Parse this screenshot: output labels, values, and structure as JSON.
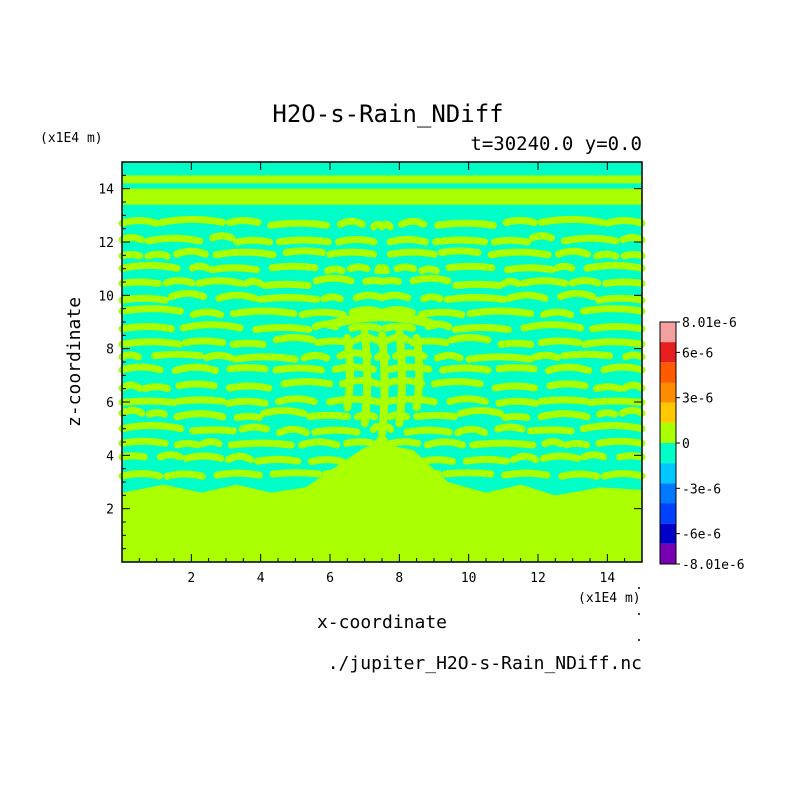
{
  "chart_data": {
    "type": "heatmap",
    "title": "H2O-s-Rain_NDiff",
    "subtitle": "t=30240.0 y=0.0",
    "xlabel": "x-coordinate",
    "ylabel": "z-coordinate",
    "x_unit": "(x1E4 m)",
    "y_unit": "(x1E4 m)",
    "xlim": [
      0,
      15
    ],
    "ylim": [
      0,
      15
    ],
    "x_ticks": [
      "2",
      "4",
      "6",
      "8",
      "10",
      "12",
      "14"
    ],
    "y_ticks": [
      "2",
      "4",
      "6",
      "8",
      "10",
      "12",
      "14"
    ],
    "footer": "./jupiter_H2O-s-Rain_NDiff.nc",
    "colorbar": {
      "labels": [
        "8.01e-6",
        "6e-6",
        "3e-6",
        "0",
        "-3e-6",
        "-6e-6",
        "-8.01e-6"
      ],
      "range": [
        -8.01e-06,
        8.01e-06
      ],
      "colors": [
        "#f5a0a0",
        "#e61e1e",
        "#ff5a00",
        "#ff8c00",
        "#ffc800",
        "#aaff00",
        "#00ffc8",
        "#00c8ff",
        "#0078ff",
        "#0040ff",
        "#0000c8",
        "#7800b4"
      ]
    },
    "field_colors": {
      "zero_band": "#aaff00",
      "negative_band": "#00ffc8"
    }
  }
}
